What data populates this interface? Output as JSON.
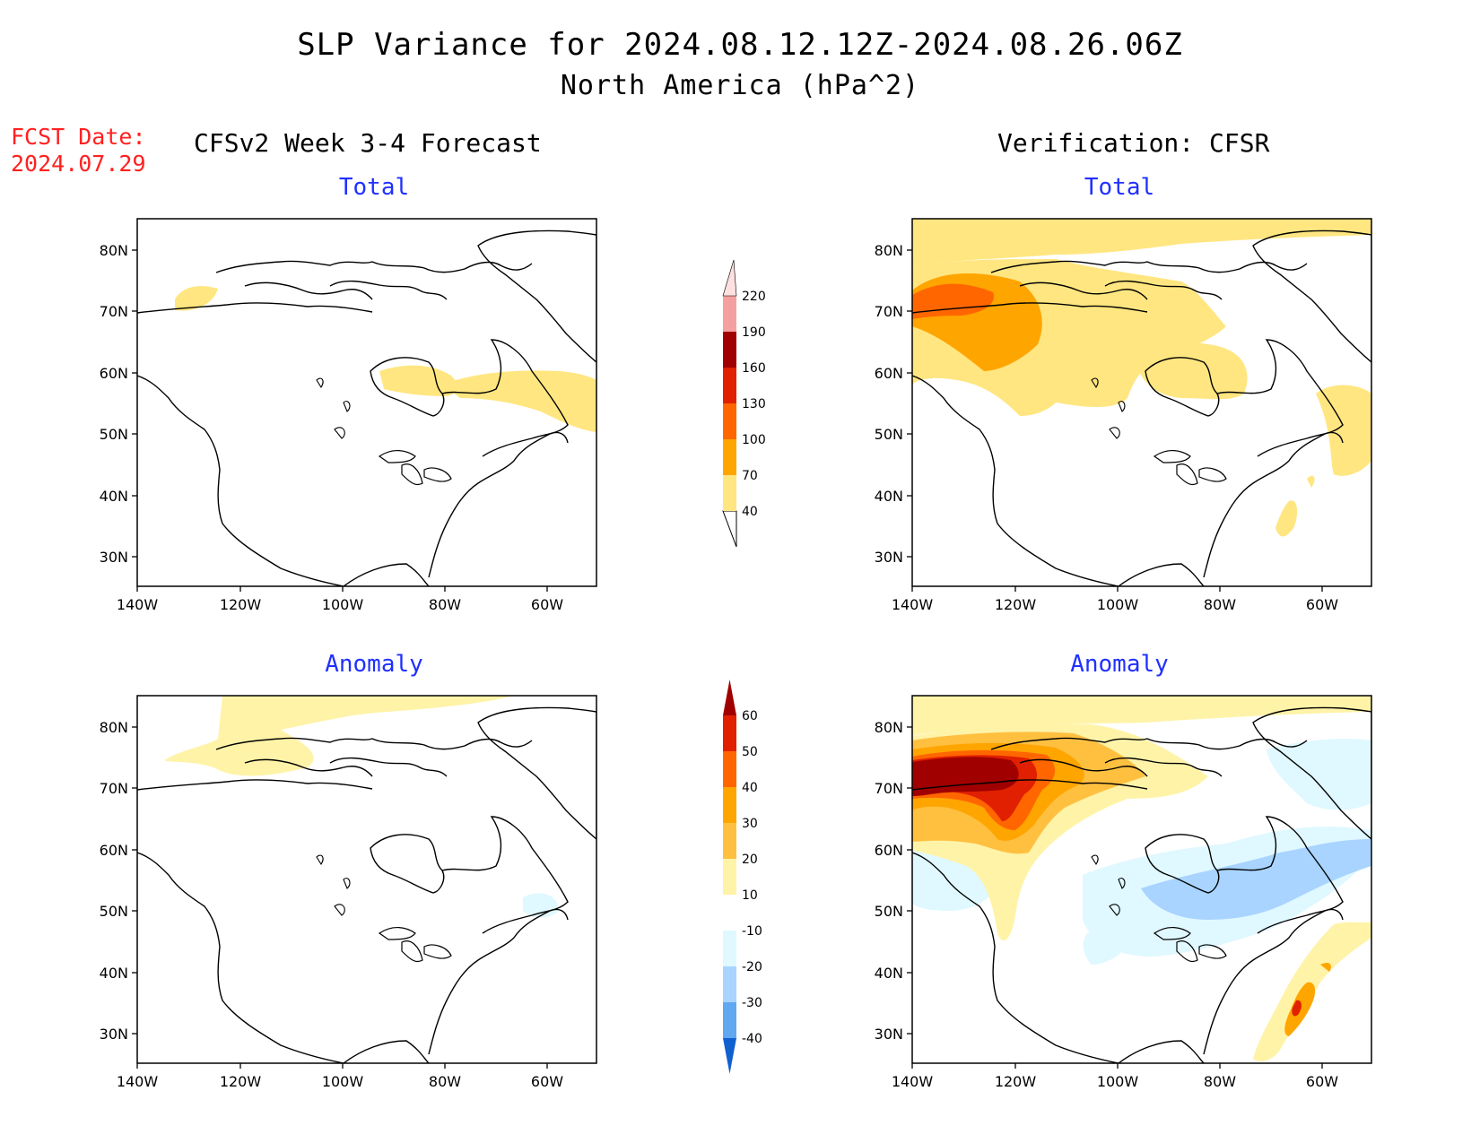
{
  "title": "SLP Variance for 2024.08.12.12Z-2024.08.26.06Z",
  "subtitle": "North America (hPa^2)",
  "fcst_label": "FCST Date:",
  "fcst_date": "2024.07.29",
  "columns": {
    "left": "CFSv2 Week 3-4 Forecast",
    "right": "Verification: CFSR"
  },
  "panels": {
    "top_left": "Total",
    "top_right": "Total",
    "bottom_left": "Anomaly",
    "bottom_right": "Anomaly"
  },
  "axes": {
    "lat_labels": [
      "80N",
      "70N",
      "60N",
      "50N",
      "40N",
      "30N"
    ],
    "lon_labels": [
      "140W",
      "120W",
      "100W",
      "80W",
      "60W"
    ]
  },
  "colorbars": {
    "total": {
      "levels": [
        "40",
        "70",
        "100",
        "130",
        "160",
        "190",
        "220"
      ],
      "colors": [
        "#ffe680",
        "#ffa500",
        "#ff6600",
        "#e02000",
        "#a00000",
        "#f4a0a0",
        "#ffe0e0"
      ]
    },
    "anomaly": {
      "levels": [
        "60",
        "50",
        "40",
        "30",
        "20",
        "10",
        "-10",
        "-20",
        "-30",
        "-40"
      ],
      "colors": [
        "#a00000",
        "#e02000",
        "#ff6600",
        "#ffa500",
        "#ffc040",
        "#fff3a8",
        "#ffffff",
        "#e0f8ff",
        "#a8d4ff",
        "#60a8f0",
        "#2070e0",
        "#1060d0"
      ]
    }
  }
}
